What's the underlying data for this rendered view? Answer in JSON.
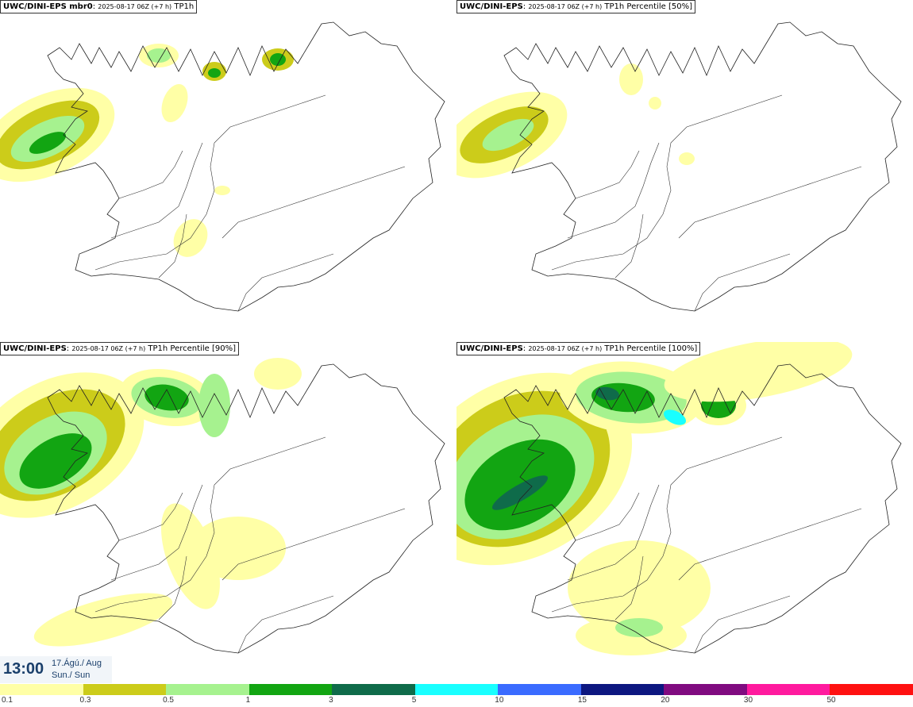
{
  "panels": [
    {
      "model": "UWC/DINI-EPS mbr0",
      "run": "2025-08-17 06Z (+7 h)",
      "field": "TP1h"
    },
    {
      "model": "UWC/DINI-EPS",
      "run": "2025-08-17 06Z (+7 h)",
      "field": "TP1h Percentile [50%]"
    },
    {
      "model": "UWC/DINI-EPS",
      "run": "2025-08-17 06Z (+7 h)",
      "field": "TP1h Percentile [90%]"
    },
    {
      "model": "UWC/DINI-EPS",
      "run": "2025-08-17 06Z (+7 h)",
      "field": "TP1h Percentile [100%]"
    }
  ],
  "time": {
    "clock": "13:00",
    "date": "17.Ágú./ Aug",
    "day": "Sun./ Sun"
  },
  "legend": {
    "colors": [
      "#ffffa6",
      "#cccc1a",
      "#a6f28f",
      "#12a512",
      "#0f6b4a",
      "#19ffff",
      "#3a6bff",
      "#0d1780",
      "#800b80",
      "#ff1a9e",
      "#ff1111"
    ],
    "ticks": [
      "0.1",
      "0.3",
      "0.5",
      "1",
      "3",
      "5",
      "10",
      "15",
      "20",
      "30",
      "50"
    ]
  }
}
